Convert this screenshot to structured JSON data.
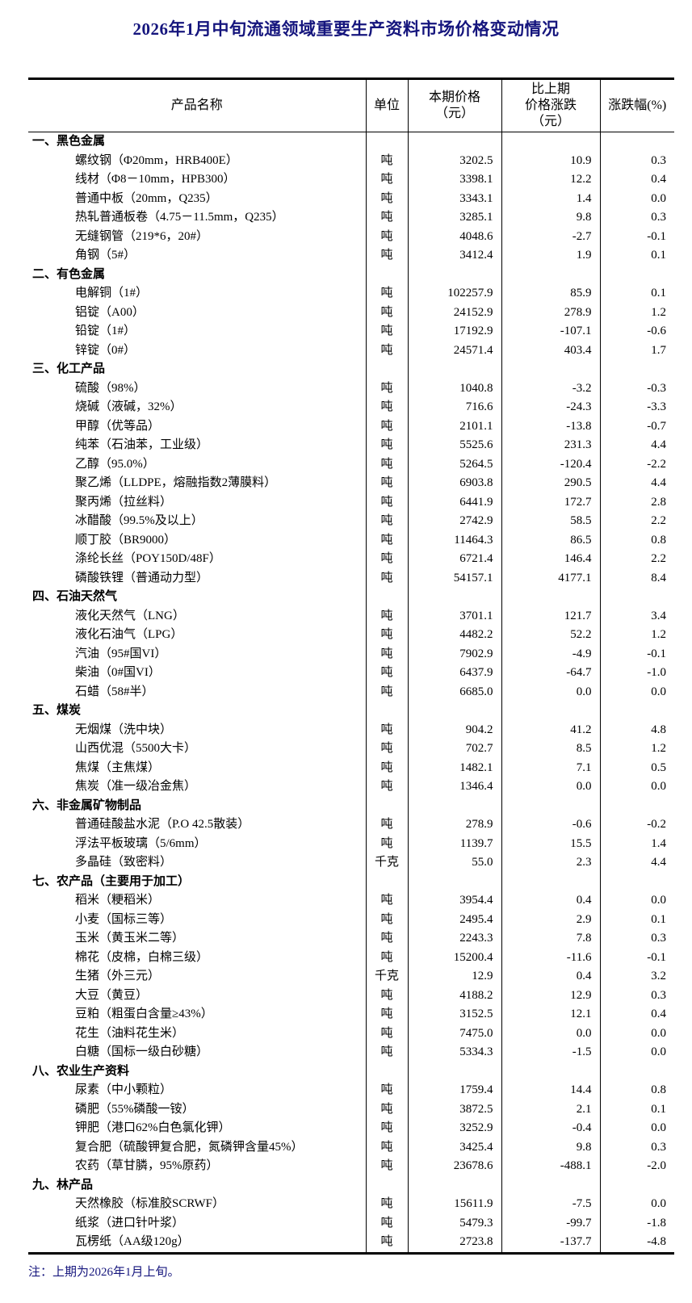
{
  "page": {
    "title": "2026年1月中旬流通领域重要生产资料市场价格变动情况",
    "note": "注：上期为2026年1月上旬。"
  },
  "colors": {
    "navy": "#15157d",
    "ink": "#000000"
  },
  "table": {
    "headers": {
      "product": "产品名称",
      "unit": "单位",
      "price": "本期价格\n（元）",
      "change": "比上期\n价格涨跌\n（元）",
      "pct": "涨跌幅(%)"
    },
    "sections": [
      {
        "name": "一、黑色金属",
        "rows": [
          {
            "product": "螺纹钢（Φ20mm，HRB400E）",
            "unit": "吨",
            "price": "3202.5",
            "change": "10.9",
            "pct": "0.3"
          },
          {
            "product": "线材（Φ8－10mm，HPB300）",
            "unit": "吨",
            "price": "3398.1",
            "change": "12.2",
            "pct": "0.4"
          },
          {
            "product": "普通中板（20mm，Q235）",
            "unit": "吨",
            "price": "3343.1",
            "change": "1.4",
            "pct": "0.0"
          },
          {
            "product": "热轧普通板卷（4.75－11.5mm，Q235）",
            "unit": "吨",
            "price": "3285.1",
            "change": "9.8",
            "pct": "0.3"
          },
          {
            "product": "无缝钢管（219*6，20#）",
            "unit": "吨",
            "price": "4048.6",
            "change": "-2.7",
            "pct": "-0.1"
          },
          {
            "product": "角钢（5#）",
            "unit": "吨",
            "price": "3412.4",
            "change": "1.9",
            "pct": "0.1"
          }
        ]
      },
      {
        "name": "二、有色金属",
        "rows": [
          {
            "product": "电解铜（1#）",
            "unit": "吨",
            "price": "102257.9",
            "change": "85.9",
            "pct": "0.1"
          },
          {
            "product": "铝锭（A00）",
            "unit": "吨",
            "price": "24152.9",
            "change": "278.9",
            "pct": "1.2"
          },
          {
            "product": "铅锭（1#）",
            "unit": "吨",
            "price": "17192.9",
            "change": "-107.1",
            "pct": "-0.6"
          },
          {
            "product": "锌锭（0#）",
            "unit": "吨",
            "price": "24571.4",
            "change": "403.4",
            "pct": "1.7"
          }
        ]
      },
      {
        "name": "三、化工产品",
        "rows": [
          {
            "product": "硫酸（98%）",
            "unit": "吨",
            "price": "1040.8",
            "change": "-3.2",
            "pct": "-0.3"
          },
          {
            "product": "烧碱（液碱，32%）",
            "unit": "吨",
            "price": "716.6",
            "change": "-24.3",
            "pct": "-3.3"
          },
          {
            "product": "甲醇（优等品）",
            "unit": "吨",
            "price": "2101.1",
            "change": "-13.8",
            "pct": "-0.7"
          },
          {
            "product": "纯苯（石油苯，工业级）",
            "unit": "吨",
            "price": "5525.6",
            "change": "231.3",
            "pct": "4.4"
          },
          {
            "product": "乙醇（95.0%）",
            "unit": "吨",
            "price": "5264.5",
            "change": "-120.4",
            "pct": "-2.2"
          },
          {
            "product": "聚乙烯（LLDPE，熔融指数2薄膜料）",
            "unit": "吨",
            "price": "6903.8",
            "change": "290.5",
            "pct": "4.4"
          },
          {
            "product": "聚丙烯（拉丝料）",
            "unit": "吨",
            "price": "6441.9",
            "change": "172.7",
            "pct": "2.8"
          },
          {
            "product": "冰醋酸（99.5%及以上）",
            "unit": "吨",
            "price": "2742.9",
            "change": "58.5",
            "pct": "2.2"
          },
          {
            "product": "顺丁胶（BR9000）",
            "unit": "吨",
            "price": "11464.3",
            "change": "86.5",
            "pct": "0.8"
          },
          {
            "product": "涤纶长丝（POY150D/48F）",
            "unit": "吨",
            "price": "6721.4",
            "change": "146.4",
            "pct": "2.2"
          },
          {
            "product": "磷酸铁锂（普通动力型）",
            "unit": "吨",
            "price": "54157.1",
            "change": "4177.1",
            "pct": "8.4"
          }
        ]
      },
      {
        "name": "四、石油天然气",
        "rows": [
          {
            "product": "液化天然气（LNG）",
            "unit": "吨",
            "price": "3701.1",
            "change": "121.7",
            "pct": "3.4"
          },
          {
            "product": "液化石油气（LPG）",
            "unit": "吨",
            "price": "4482.2",
            "change": "52.2",
            "pct": "1.2"
          },
          {
            "product": "汽油（95#国VI）",
            "unit": "吨",
            "price": "7902.9",
            "change": "-4.9",
            "pct": "-0.1"
          },
          {
            "product": "柴油（0#国VI）",
            "unit": "吨",
            "price": "6437.9",
            "change": "-64.7",
            "pct": "-1.0"
          },
          {
            "product": "石蜡（58#半）",
            "unit": "吨",
            "price": "6685.0",
            "change": "0.0",
            "pct": "0.0"
          }
        ]
      },
      {
        "name": "五、煤炭",
        "rows": [
          {
            "product": "无烟煤（洗中块）",
            "unit": "吨",
            "price": "904.2",
            "change": "41.2",
            "pct": "4.8"
          },
          {
            "product": "山西优混（5500大卡）",
            "unit": "吨",
            "price": "702.7",
            "change": "8.5",
            "pct": "1.2"
          },
          {
            "product": "焦煤（主焦煤）",
            "unit": "吨",
            "price": "1482.1",
            "change": "7.1",
            "pct": "0.5"
          },
          {
            "product": "焦炭（准一级冶金焦）",
            "unit": "吨",
            "price": "1346.4",
            "change": "0.0",
            "pct": "0.0"
          }
        ]
      },
      {
        "name": "六、非金属矿物制品",
        "rows": [
          {
            "product": "普通硅酸盐水泥（P.O 42.5散装）",
            "unit": "吨",
            "price": "278.9",
            "change": "-0.6",
            "pct": "-0.2"
          },
          {
            "product": "浮法平板玻璃（5/6mm）",
            "unit": "吨",
            "price": "1139.7",
            "change": "15.5",
            "pct": "1.4"
          },
          {
            "product": "多晶硅（致密料）",
            "unit": "千克",
            "price": "55.0",
            "change": "2.3",
            "pct": "4.4"
          }
        ]
      },
      {
        "name": "七、农产品（主要用于加工）",
        "rows": [
          {
            "product": "稻米（粳稻米）",
            "unit": "吨",
            "price": "3954.4",
            "change": "0.4",
            "pct": "0.0"
          },
          {
            "product": "小麦（国标三等）",
            "unit": "吨",
            "price": "2495.4",
            "change": "2.9",
            "pct": "0.1"
          },
          {
            "product": "玉米（黄玉米二等）",
            "unit": "吨",
            "price": "2243.3",
            "change": "7.8",
            "pct": "0.3"
          },
          {
            "product": "棉花（皮棉，白棉三级）",
            "unit": "吨",
            "price": "15200.4",
            "change": "-11.6",
            "pct": "-0.1"
          },
          {
            "product": "生猪（外三元）",
            "unit": "千克",
            "price": "12.9",
            "change": "0.4",
            "pct": "3.2"
          },
          {
            "product": "大豆（黄豆）",
            "unit": "吨",
            "price": "4188.2",
            "change": "12.9",
            "pct": "0.3"
          },
          {
            "product": "豆粕（粗蛋白含量≥43%）",
            "unit": "吨",
            "price": "3152.5",
            "change": "12.1",
            "pct": "0.4"
          },
          {
            "product": "花生（油料花生米）",
            "unit": "吨",
            "price": "7475.0",
            "change": "0.0",
            "pct": "0.0"
          },
          {
            "product": "白糖（国标一级白砂糖）",
            "unit": "吨",
            "price": "5334.3",
            "change": "-1.5",
            "pct": "0.0"
          }
        ]
      },
      {
        "name": "八、农业生产资料",
        "rows": [
          {
            "product": "尿素（中小颗粒）",
            "unit": "吨",
            "price": "1759.4",
            "change": "14.4",
            "pct": "0.8"
          },
          {
            "product": "磷肥（55%磷酸一铵）",
            "unit": "吨",
            "price": "3872.5",
            "change": "2.1",
            "pct": "0.1"
          },
          {
            "product": "钾肥（港口62%白色氯化钾）",
            "unit": "吨",
            "price": "3252.9",
            "change": "-0.4",
            "pct": "0.0"
          },
          {
            "product": "复合肥（硫酸钾复合肥，氮磷钾含量45%）",
            "unit": "吨",
            "price": "3425.4",
            "change": "9.8",
            "pct": "0.3"
          },
          {
            "product": "农药（草甘膦，95%原药）",
            "unit": "吨",
            "price": "23678.6",
            "change": "-488.1",
            "pct": "-2.0"
          }
        ]
      },
      {
        "name": "九、林产品",
        "rows": [
          {
            "product": "天然橡胶（标准胶SCRWF）",
            "unit": "吨",
            "price": "15611.9",
            "change": "-7.5",
            "pct": "0.0"
          },
          {
            "product": "纸浆（进口针叶浆）",
            "unit": "吨",
            "price": "5479.3",
            "change": "-99.7",
            "pct": "-1.8"
          },
          {
            "product": "瓦楞纸（AA级120g）",
            "unit": "吨",
            "price": "2723.8",
            "change": "-137.7",
            "pct": "-4.8"
          }
        ]
      }
    ]
  }
}
